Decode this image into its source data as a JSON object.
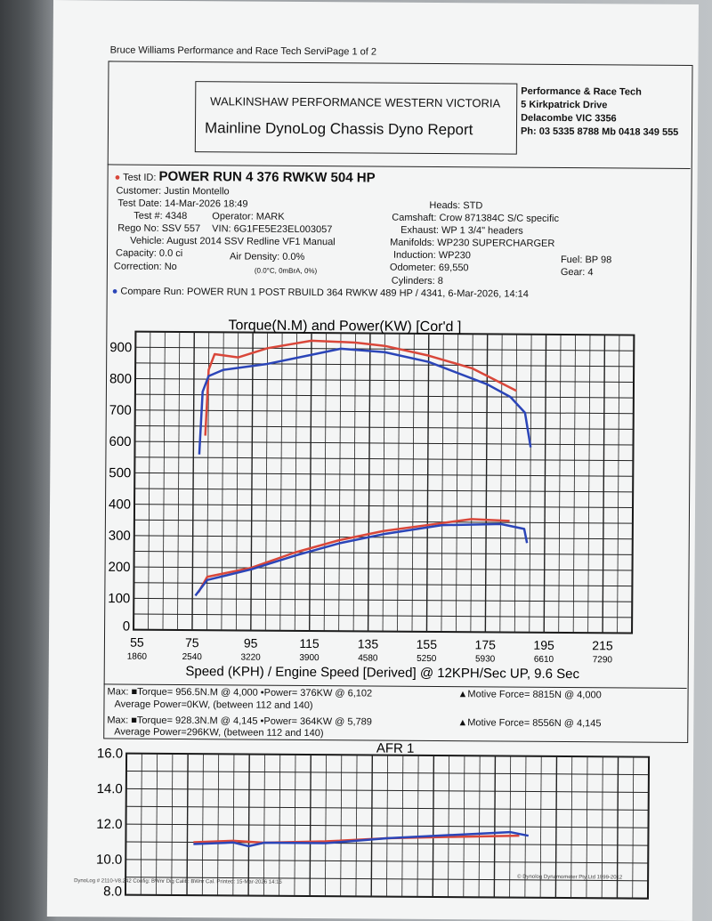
{
  "header": {
    "line": "Bruce Williams Performance and Race Tech ServiPage 1 of 2",
    "company": "WALKINSHAW PERFORMANCE WESTERN VICTORIA",
    "report_title": "Mainline DynoLog Chassis Dyno Report",
    "address": [
      "Performance & Race Tech",
      "5 Kirkpatrick Drive",
      "Delacombe VIC 3356",
      "Ph: 03 5335 8788 Mb 0418 349 555"
    ]
  },
  "info": {
    "test_id_label": "Test ID:",
    "test_id": "POWER RUN 4 376 RWKW  504 HP",
    "customer": "Customer: Justin Montello",
    "test_date": "Test Date: 14-Mar-2026 18:49",
    "test_no": "Test #: 4348",
    "operator": "Operator: MARK",
    "rego": "Rego No: SSV 557",
    "vin": "VIN: 6G1FE5E23EL003057",
    "vehicle": "Vehicle: August 2014 SSV Redline VF1 Manual",
    "capacity": "Capacity: 0.0 ci",
    "air_density": "Air Density: 0.0%",
    "correction": "Correction: No",
    "conditions": "(0.0°C, 0mBrA, 0%)",
    "heads": "Heads: STD",
    "camshaft": "Camshaft: Crow 871384C S/C specific",
    "exhaust": "Exhaust: WP 1 3/4\" headers",
    "manifolds": "Manifolds: WP230 SUPERCHARGER",
    "induction": "Induction: WP230",
    "odometer": "Odometer: 69,550",
    "cylinders": "Cylinders: 8",
    "fuel": "Fuel: BP 98",
    "gear": "Gear: 4",
    "compare": "Compare Run:  POWER RUN 1 POST RBUILD 364 RWKW  489 HP / 4341,  6-Mar-2026,  14:14"
  },
  "summary": {
    "run1_max": "Max:  ■Torque= 956.5N.M @ 4,000     •Power= 376KW @ 6,102",
    "run1_force": "▲Motive Force= 8815N @ 4,000",
    "run1_avg": "Average Power=0KW, (between 112 and 140)",
    "run2_max": "Max:  ■Torque= 928.3N.M @ 4,145     •Power= 364KW @ 5,789",
    "run2_force": "▲Motive Force= 8556N @ 4,145",
    "run2_avg": "Average Power=296KW, (between 112 and 140)"
  },
  "footer": {
    "left": "DynoLog # 2110-V8.242 Config: BWnr Dig Calib: BWnr Cal. Printed: 15-Mar-2026 14:15",
    "right": "© Dynolog Dynamometer Pty Ltd 1999-2012"
  },
  "colors": {
    "test": "#d9473a",
    "compare": "#2b45b8"
  },
  "chart_data": [
    {
      "type": "line",
      "title": "Torque(N.M) and Power(KW)    [Cor'd ]",
      "xlabel": "Speed (KPH) / Engine Speed [Derived] @ 12KPH/Sec UP, 9.6 Sec",
      "xlim": [
        55,
        225
      ],
      "ylim": [
        0,
        950
      ],
      "xticks": [
        55,
        75,
        95,
        115,
        135,
        155,
        175,
        195,
        215
      ],
      "rpm_ticks": [
        "1860",
        "2540",
        "3220",
        "3900",
        "4580",
        "5250",
        "5930",
        "6610",
        "7290"
      ],
      "yticks": [
        0,
        100,
        200,
        300,
        400,
        500,
        600,
        700,
        800,
        900
      ],
      "series": [
        {
          "name": "Torque (test run)",
          "color": "test",
          "x": [
            79,
            80,
            82,
            90,
            100,
            115,
            130,
            140,
            155,
            170,
            185
          ],
          "y": [
            620,
            830,
            880,
            870,
            900,
            925,
            920,
            910,
            880,
            840,
            770
          ]
        },
        {
          "name": "Torque (compare run)",
          "color": "compare",
          "x": [
            77,
            78,
            80,
            85,
            100,
            115,
            125,
            140,
            155,
            175,
            183,
            188,
            190
          ],
          "y": [
            560,
            760,
            810,
            830,
            850,
            880,
            900,
            890,
            860,
            790,
            750,
            700,
            590
          ]
        },
        {
          "name": "Power (test run)",
          "color": "test",
          "x": [
            77,
            80,
            95,
            110,
            125,
            140,
            155,
            170,
            183
          ],
          "y": [
            120,
            170,
            200,
            250,
            290,
            320,
            340,
            360,
            355
          ]
        },
        {
          "name": "Power (compare run)",
          "color": "compare",
          "x": [
            76,
            80,
            95,
            110,
            125,
            140,
            160,
            180,
            188,
            189
          ],
          "y": [
            110,
            160,
            195,
            240,
            280,
            310,
            340,
            345,
            330,
            285
          ]
        }
      ]
    },
    {
      "type": "line",
      "title": "AFR 1",
      "xlim": [
        55,
        225
      ],
      "ylim": [
        8,
        16
      ],
      "yticks": [
        8,
        10,
        12,
        14,
        16
      ],
      "series": [
        {
          "name": "AFR (test run)",
          "color": "test",
          "x": [
            77,
            90,
            100,
            120,
            140,
            160,
            183
          ],
          "y": [
            11.0,
            11.1,
            11.0,
            11.1,
            11.3,
            11.4,
            11.5
          ]
        },
        {
          "name": "AFR (compare run)",
          "color": "compare",
          "x": [
            77,
            90,
            95,
            100,
            120,
            140,
            160,
            180,
            186
          ],
          "y": [
            10.9,
            11.0,
            10.8,
            11.0,
            11.0,
            11.3,
            11.5,
            11.7,
            11.5
          ]
        }
      ]
    }
  ]
}
